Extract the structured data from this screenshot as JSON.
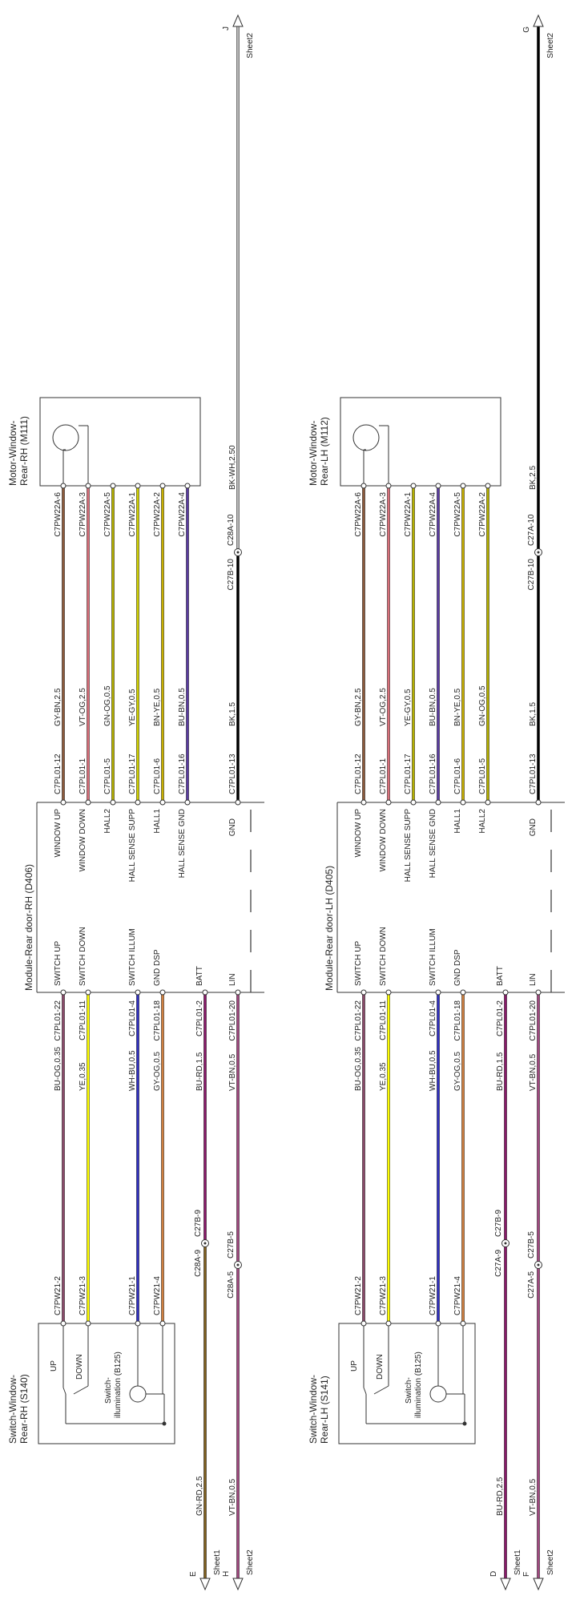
{
  "diagrams": [
    {
      "motor": {
        "title": [
          "Motor-Window-",
          "Rear-RH (M111)"
        ]
      },
      "module": {
        "title": "Module-Rear door-RH (D406)"
      },
      "switch": {
        "title": [
          "Switch-Window-",
          "Rear-RH (S140)"
        ],
        "up": "UP",
        "down": "DOWN",
        "illum": [
          "Switch-",
          "illumination (B125)"
        ]
      },
      "motor_wires": [
        {
          "function": "WINDOW UP",
          "module_pin": "C7PL01-12",
          "wire": "GY-BN,2.5",
          "motor_pin": "C7PW22A-6",
          "color": "#8b5a3c"
        },
        {
          "function": "WINDOW DOWN",
          "module_pin": "C7PL01-1",
          "wire": "VT-OG,2.5",
          "motor_pin": "C7PW22A-3",
          "color": "#d9707a"
        },
        {
          "function": "HALL2",
          "module_pin": "C7PL01-5",
          "wire": "GN-OG,0.5",
          "motor_pin": "C7PW22A-5",
          "color": "#b5b000"
        },
        {
          "function": "HALL SENSE SUPP",
          "module_pin": "C7PL01-17",
          "wire": "YE-GY,0.5",
          "motor_pin": "C7PW22A-1",
          "color": "#d0d000"
        },
        {
          "function": "HALL1",
          "module_pin": "C7PL01-6",
          "wire": "BN-YE,0.5",
          "motor_pin": "C7PW22A-2",
          "color": "#c8b000"
        },
        {
          "function": "HALL SENSE GND",
          "module_pin": "C7PL01-16",
          "wire": "BU-BN,0.5",
          "motor_pin": "C7PW22A-4",
          "color": "#5a3ca0"
        }
      ],
      "ground": {
        "function": "GND",
        "module_pin": "C7PL01-13",
        "wire": "BK,1.5",
        "splice": [
          "C27B-10",
          "C28A-10"
        ],
        "wire_out": "BK-WH,2.50",
        "color": "#000000",
        "color_out": "#bbbbbb",
        "sheet": "Sheet2",
        "ref": "J"
      },
      "switch_wires": [
        {
          "function": "SWITCH UP",
          "module_pin": "C7PL01-22",
          "wire": "BU-OG,0.35",
          "switch_pin": "C7PW21-2",
          "color": "#8a4a6a"
        },
        {
          "function": "SWITCH DOWN",
          "module_pin": "C7PL01-11",
          "wire": "YE,0.35",
          "switch_pin": "C7PW21-3",
          "color": "#ffff00"
        },
        {
          "function": "SWITCH ILLUM",
          "module_pin": "C7PL01-4",
          "wire": "WH-BU,0.5",
          "switch_pin": "C7PW21-1",
          "color": "#3030c0"
        },
        {
          "function": "GND DSP",
          "module_pin": "C7PL01-18",
          "wire": "GY-OG,0.5",
          "switch_pin": "C7PW21-4",
          "color": "#d08040"
        }
      ],
      "batt": {
        "function": "BATT",
        "module_pin": "C7PL01-2",
        "wire": "BU-RD,1.5",
        "splice": [
          "C28A-9",
          "C27B-9"
        ],
        "wire_out": "GN-RD,2.5",
        "color": "#8a1a6a",
        "color_out": "#806020",
        "sheet": "Sheet1",
        "ref": "E"
      },
      "lin": {
        "function": "LIN",
        "module_pin": "C7PL01-20",
        "wire": "VT-BN,0.5",
        "splice": [
          "C28A-5",
          "C27B-5"
        ],
        "wire_out": "VT-BN,0.5",
        "color": "#a04a80",
        "color_out": "#a04a80",
        "sheet": "Sheet2",
        "ref": "H"
      }
    },
    {
      "motor": {
        "title": [
          "Motor-Window-",
          "Rear-LH (M112)"
        ]
      },
      "module": {
        "title": "Module-Rear door-LH (D405)"
      },
      "switch": {
        "title": [
          "Switch-Window-",
          "Rear-LH (S141)"
        ],
        "up": "UP",
        "down": "DOWN",
        "illum": [
          "Switch-",
          "illumination (B125)"
        ]
      },
      "motor_wires": [
        {
          "function": "WINDOW UP",
          "module_pin": "C7PL01-12",
          "wire": "GY-BN,2.5",
          "motor_pin": "C7PW22A-6",
          "color": "#8b5a3c"
        },
        {
          "function": "WINDOW DOWN",
          "module_pin": "C7PL01-1",
          "wire": "VT-OG,2.5",
          "motor_pin": "C7PW22A-3",
          "color": "#d9707a"
        },
        {
          "function": "HALL SENSE SUPP",
          "module_pin": "C7PL01-17",
          "wire": "YE-GY,0.5",
          "motor_pin": "C7PW22A-1",
          "color": "#b5b000"
        },
        {
          "function": "HALL SENSE GND",
          "module_pin": "C7PL01-16",
          "wire": "BU-BN,0.5",
          "motor_pin": "C7PW22A-4",
          "color": "#5a3ca0"
        },
        {
          "function": "HALL1",
          "module_pin": "C7PL01-6",
          "wire": "BN-YE,0.5",
          "motor_pin": "C7PW22A-5",
          "color": "#c8b000"
        },
        {
          "function": "HALL2",
          "module_pin": "C7PL01-5",
          "wire": "GN-OG,0.5",
          "motor_pin": "C7PW22A-2",
          "color": "#b5b000"
        }
      ],
      "ground": {
        "function": "GND",
        "module_pin": "C7PL01-13",
        "wire": "BK,1.5",
        "splice": [
          "C27B-10",
          "C27A-10"
        ],
        "wire_out": "BK,2.5",
        "color": "#000000",
        "color_out": "#000000",
        "sheet": "Sheet2",
        "ref": "G"
      },
      "switch_wires": [
        {
          "function": "SWITCH UP",
          "module_pin": "C7PL01-22",
          "wire": "BU-OG,0.35",
          "switch_pin": "C7PW21-2",
          "color": "#8a4a6a"
        },
        {
          "function": "SWITCH DOWN",
          "module_pin": "C7PL01-11",
          "wire": "YE,0.35",
          "switch_pin": "C7PW21-3",
          "color": "#ffff00"
        },
        {
          "function": "SWITCH ILLUM",
          "module_pin": "C7PL01-4",
          "wire": "WH-BU,0.5",
          "switch_pin": "C7PW21-1",
          "color": "#3030c0"
        },
        {
          "function": "GND DSP",
          "module_pin": "C7PL01-18",
          "wire": "GY-OG,0.5",
          "switch_pin": "C7PW21-4",
          "color": "#d08040"
        }
      ],
      "batt": {
        "function": "BATT",
        "module_pin": "C7PL01-2",
        "wire": "BU-RD,1.5",
        "splice": [
          "C27A-9",
          "C27B-9"
        ],
        "wire_out": "BU-RD,2.5",
        "color": "#8a1a6a",
        "color_out": "#8a1a6a",
        "sheet": "Sheet1",
        "ref": "D"
      },
      "lin": {
        "function": "LIN",
        "module_pin": "C7PL01-20",
        "wire": "VT-BN,0.5",
        "splice": [
          "C27A-5",
          "C27B-5"
        ],
        "wire_out": "VT-BN,0.5",
        "color": "#a04a80",
        "color_out": "#a04a80",
        "sheet": "Sheet2",
        "ref": "F"
      }
    }
  ]
}
